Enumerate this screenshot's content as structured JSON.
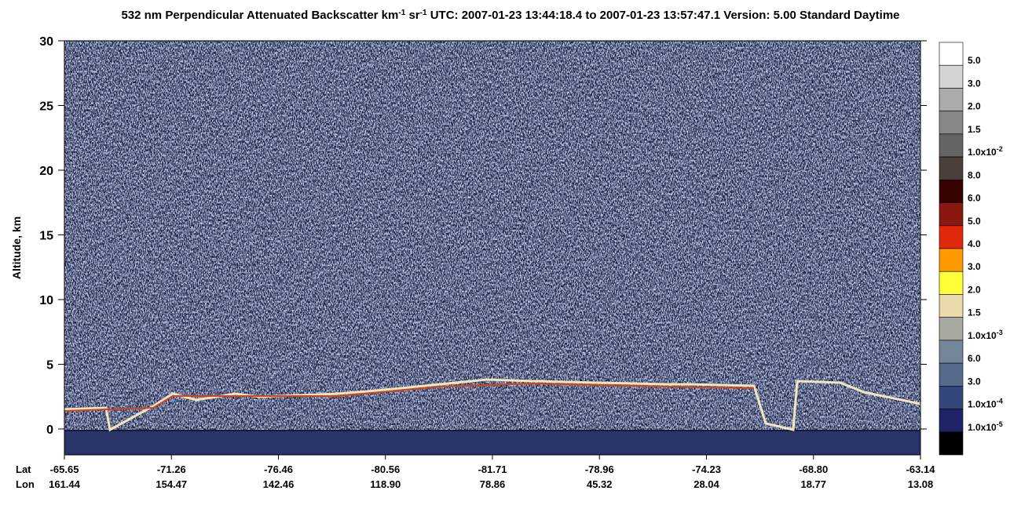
{
  "chart_data": {
    "type": "curtain",
    "title": [
      "532 nm Perpendicular Attenuated Backscatter km",
      "-1",
      " sr",
      "-1",
      "  UTC: 2007-01-23 13:44:18.4 to 2007-01-23 13:57:47.1  Version: 5.00 Standard Daytime"
    ],
    "y_label": "Altitude, km",
    "ylim": [
      -2,
      30
    ],
    "yticks": [
      0,
      5,
      10,
      15,
      20,
      25,
      30
    ],
    "x_row_labels": [
      "Lat",
      "Lon"
    ],
    "lat_labels": [
      "-65.65",
      "-71.26",
      "-76.46",
      "-80.56",
      "-81.71",
      "-78.96",
      "-74.23",
      "-68.80",
      "-63.14"
    ],
    "lon_labels": [
      "161.44",
      "154.47",
      "142.46",
      "118.90",
      "78.86",
      "45.32",
      "28.04",
      "18.77",
      "13.08"
    ],
    "colorbar": {
      "colors": [
        "#ffffff",
        "#d4d4d4",
        "#ababab",
        "#878787",
        "#646464",
        "#4a3f3b",
        "#360202",
        "#8a1810",
        "#e2280c",
        "#ff9a00",
        "#ffff3a",
        "#ead9aa",
        "#a8a9a0",
        "#76869a",
        "#566a8c",
        "#34477c",
        "#1f2468",
        "#000000"
      ],
      "labels": [
        [
          "5.0"
        ],
        [
          "3.0"
        ],
        [
          "2.0"
        ],
        [
          "1.5"
        ],
        [
          "1.0x10",
          "-2"
        ],
        [
          "8.0"
        ],
        [
          "6.0"
        ],
        [
          "5.0"
        ],
        [
          "4.0"
        ],
        [
          "3.0"
        ],
        [
          "2.0"
        ],
        [
          "1.5"
        ],
        [
          "1.0x10",
          "-3"
        ],
        [
          "6.0"
        ],
        [
          "3.0"
        ],
        [
          "1.0x10",
          "-4"
        ],
        [
          "1.0x10",
          "-5"
        ]
      ]
    }
  }
}
